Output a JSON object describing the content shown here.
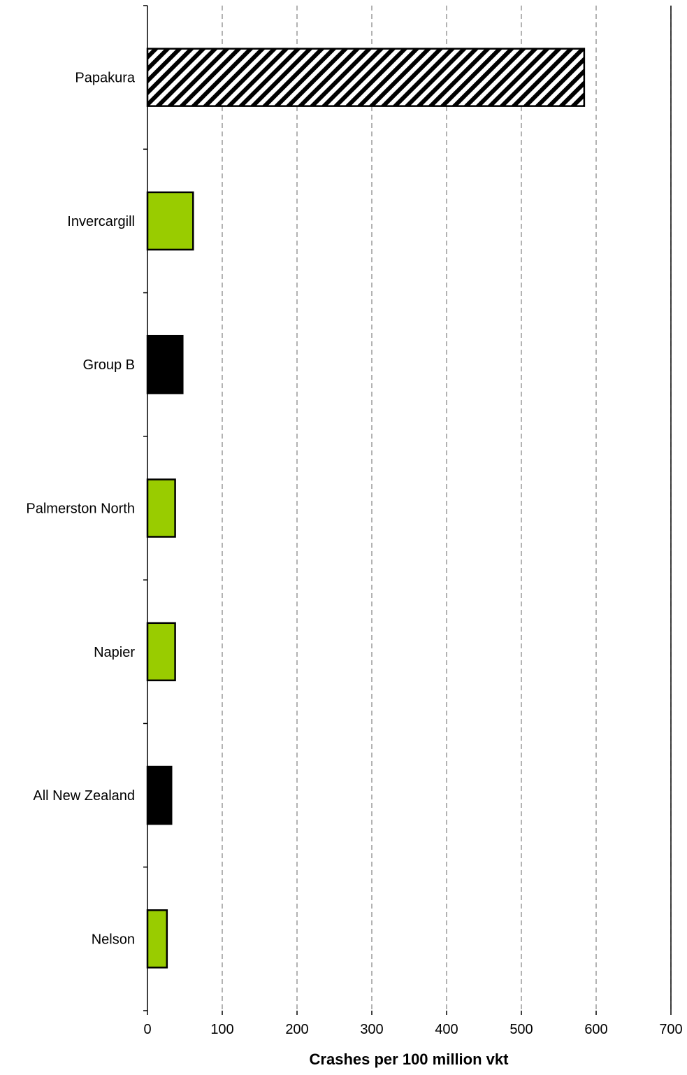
{
  "chart_data": {
    "type": "bar",
    "orientation": "horizontal",
    "categories": [
      "Papakura",
      "Invercargill",
      "Group B",
      "Palmerston North",
      "Napier",
      "All New Zealand",
      "Nelson"
    ],
    "values": [
      584,
      61,
      47,
      37,
      37,
      32,
      26
    ],
    "bar_styles": [
      "hatched",
      "green",
      "black",
      "green",
      "green",
      "black",
      "green"
    ],
    "colors": {
      "green": "#99cc00",
      "black": "#000000",
      "hatched": "#000000",
      "gridline": "#808080"
    },
    "title": "",
    "xlabel": "Crashes per 100 million vkt",
    "ylabel": "",
    "xlim": [
      0,
      700
    ],
    "xticks": [
      0,
      100,
      200,
      300,
      400,
      500,
      600,
      700
    ],
    "grid": "vertical dashed",
    "legend": "none"
  }
}
